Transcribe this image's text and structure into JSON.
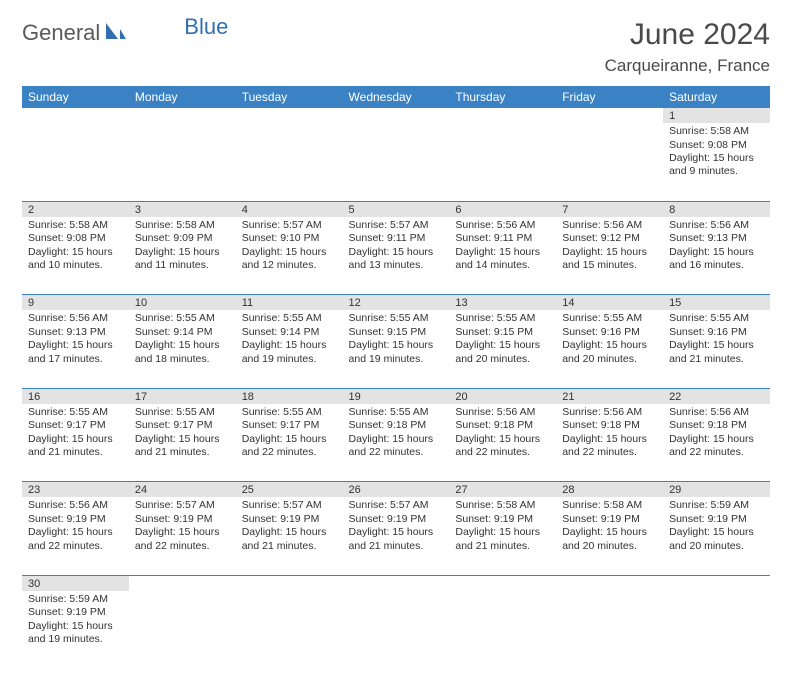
{
  "logo": {
    "part1": "General",
    "part2": "Blue"
  },
  "title": "June 2024",
  "location": "Carqueiranne, France",
  "colors": {
    "header_bg": "#3b82c4",
    "header_fg": "#ffffff",
    "daynum_bg": "#e3e3e3",
    "border": "#3b82c4",
    "logo_gray": "#5a5a5a",
    "logo_blue": "#2f6fb2"
  },
  "weekdays": [
    "Sunday",
    "Monday",
    "Tuesday",
    "Wednesday",
    "Thursday",
    "Friday",
    "Saturday"
  ],
  "weeks": [
    [
      null,
      null,
      null,
      null,
      null,
      null,
      {
        "n": "1",
        "sr": "5:58 AM",
        "ss": "9:08 PM",
        "dh": "15",
        "dm": "9"
      }
    ],
    [
      {
        "n": "2",
        "sr": "5:58 AM",
        "ss": "9:08 PM",
        "dh": "15",
        "dm": "10"
      },
      {
        "n": "3",
        "sr": "5:58 AM",
        "ss": "9:09 PM",
        "dh": "15",
        "dm": "11"
      },
      {
        "n": "4",
        "sr": "5:57 AM",
        "ss": "9:10 PM",
        "dh": "15",
        "dm": "12"
      },
      {
        "n": "5",
        "sr": "5:57 AM",
        "ss": "9:11 PM",
        "dh": "15",
        "dm": "13"
      },
      {
        "n": "6",
        "sr": "5:56 AM",
        "ss": "9:11 PM",
        "dh": "15",
        "dm": "14"
      },
      {
        "n": "7",
        "sr": "5:56 AM",
        "ss": "9:12 PM",
        "dh": "15",
        "dm": "15"
      },
      {
        "n": "8",
        "sr": "5:56 AM",
        "ss": "9:13 PM",
        "dh": "15",
        "dm": "16"
      }
    ],
    [
      {
        "n": "9",
        "sr": "5:56 AM",
        "ss": "9:13 PM",
        "dh": "15",
        "dm": "17"
      },
      {
        "n": "10",
        "sr": "5:55 AM",
        "ss": "9:14 PM",
        "dh": "15",
        "dm": "18"
      },
      {
        "n": "11",
        "sr": "5:55 AM",
        "ss": "9:14 PM",
        "dh": "15",
        "dm": "19"
      },
      {
        "n": "12",
        "sr": "5:55 AM",
        "ss": "9:15 PM",
        "dh": "15",
        "dm": "19"
      },
      {
        "n": "13",
        "sr": "5:55 AM",
        "ss": "9:15 PM",
        "dh": "15",
        "dm": "20"
      },
      {
        "n": "14",
        "sr": "5:55 AM",
        "ss": "9:16 PM",
        "dh": "15",
        "dm": "20"
      },
      {
        "n": "15",
        "sr": "5:55 AM",
        "ss": "9:16 PM",
        "dh": "15",
        "dm": "21"
      }
    ],
    [
      {
        "n": "16",
        "sr": "5:55 AM",
        "ss": "9:17 PM",
        "dh": "15",
        "dm": "21"
      },
      {
        "n": "17",
        "sr": "5:55 AM",
        "ss": "9:17 PM",
        "dh": "15",
        "dm": "21"
      },
      {
        "n": "18",
        "sr": "5:55 AM",
        "ss": "9:17 PM",
        "dh": "15",
        "dm": "22"
      },
      {
        "n": "19",
        "sr": "5:55 AM",
        "ss": "9:18 PM",
        "dh": "15",
        "dm": "22"
      },
      {
        "n": "20",
        "sr": "5:56 AM",
        "ss": "9:18 PM",
        "dh": "15",
        "dm": "22"
      },
      {
        "n": "21",
        "sr": "5:56 AM",
        "ss": "9:18 PM",
        "dh": "15",
        "dm": "22"
      },
      {
        "n": "22",
        "sr": "5:56 AM",
        "ss": "9:18 PM",
        "dh": "15",
        "dm": "22"
      }
    ],
    [
      {
        "n": "23",
        "sr": "5:56 AM",
        "ss": "9:19 PM",
        "dh": "15",
        "dm": "22"
      },
      {
        "n": "24",
        "sr": "5:57 AM",
        "ss": "9:19 PM",
        "dh": "15",
        "dm": "22"
      },
      {
        "n": "25",
        "sr": "5:57 AM",
        "ss": "9:19 PM",
        "dh": "15",
        "dm": "21"
      },
      {
        "n": "26",
        "sr": "5:57 AM",
        "ss": "9:19 PM",
        "dh": "15",
        "dm": "21"
      },
      {
        "n": "27",
        "sr": "5:58 AM",
        "ss": "9:19 PM",
        "dh": "15",
        "dm": "21"
      },
      {
        "n": "28",
        "sr": "5:58 AM",
        "ss": "9:19 PM",
        "dh": "15",
        "dm": "20"
      },
      {
        "n": "29",
        "sr": "5:59 AM",
        "ss": "9:19 PM",
        "dh": "15",
        "dm": "20"
      }
    ],
    [
      {
        "n": "30",
        "sr": "5:59 AM",
        "ss": "9:19 PM",
        "dh": "15",
        "dm": "19"
      },
      null,
      null,
      null,
      null,
      null,
      null
    ]
  ]
}
